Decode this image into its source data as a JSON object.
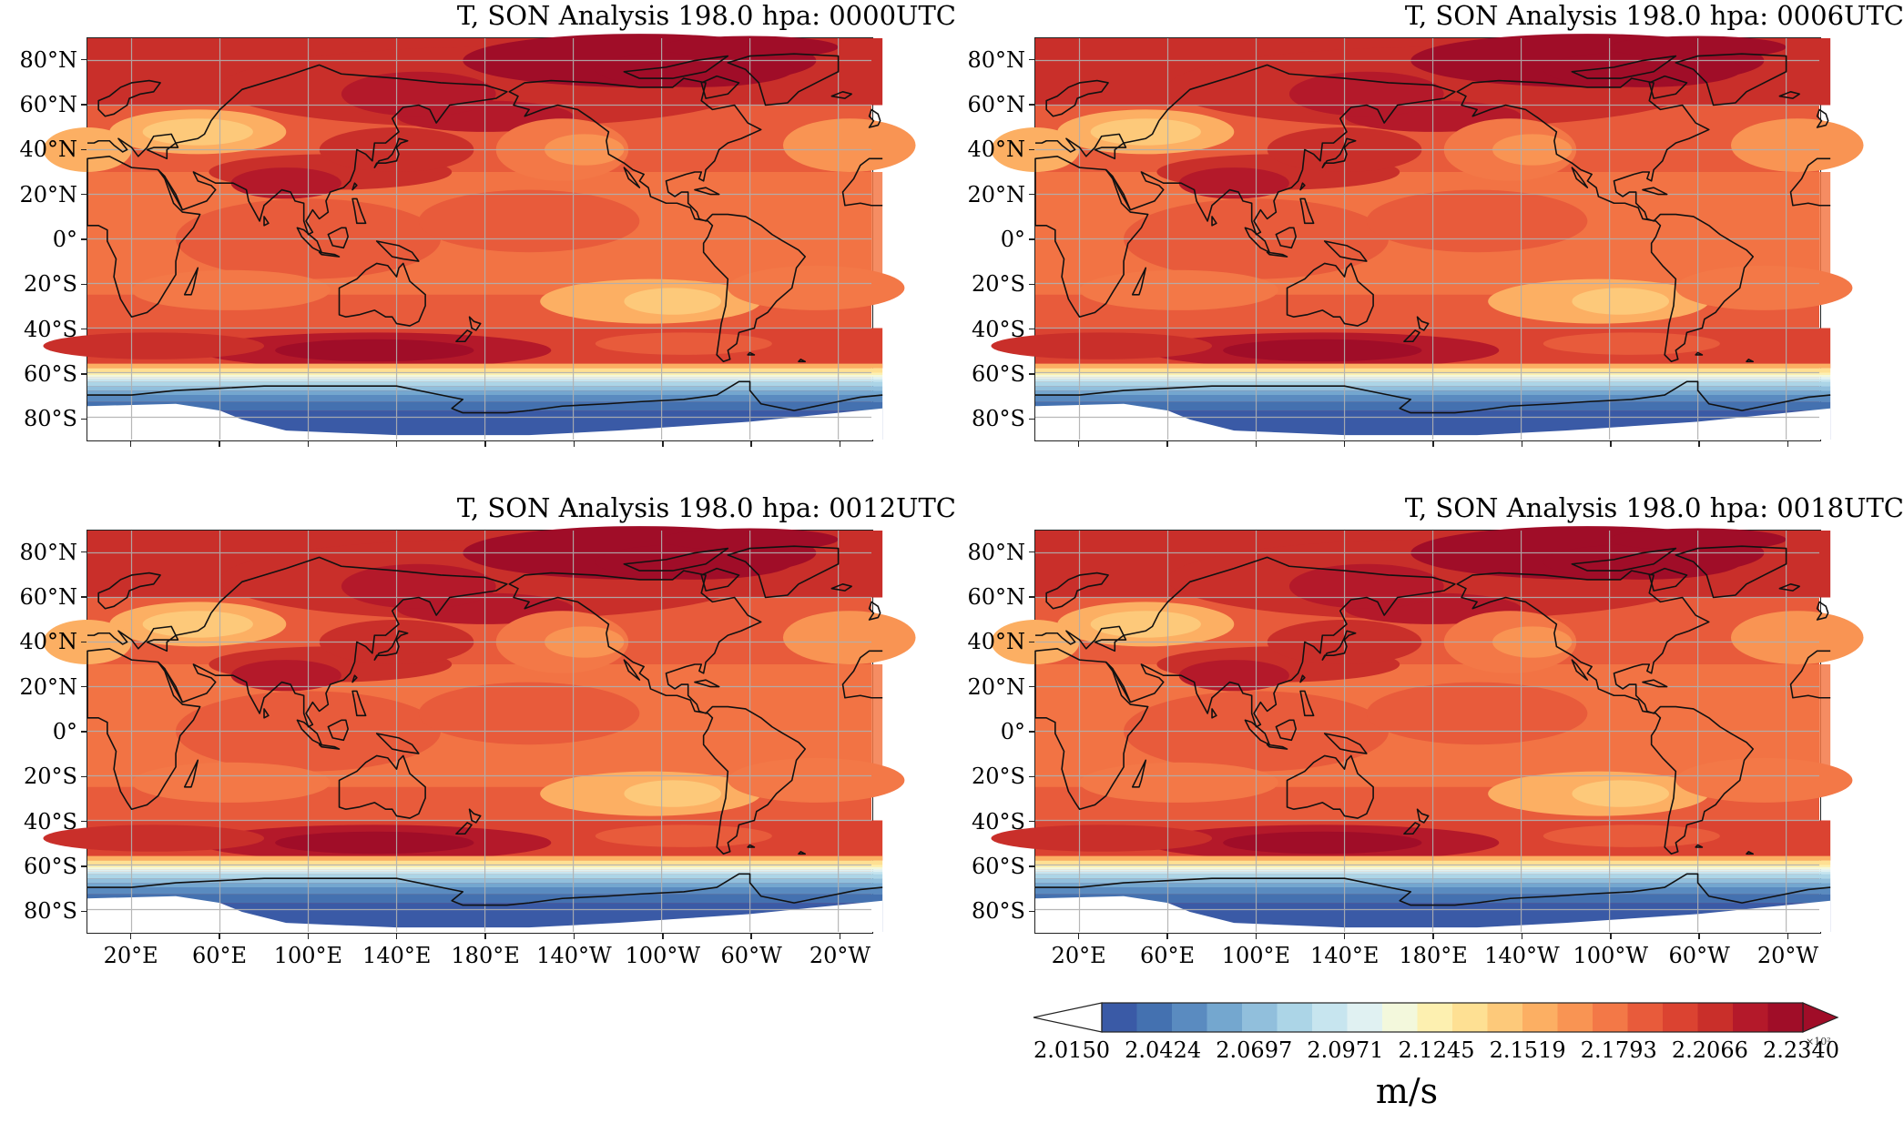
{
  "panels": [
    {
      "title": "T, SON Analysis 198.0 hpa: 0000UTC",
      "show_lon_labels": false
    },
    {
      "title": "T, SON Analysis 198.0 hpa: 0006UTC",
      "show_lon_labels": false
    },
    {
      "title": "T, SON Analysis 198.0 hpa: 0012UTC",
      "show_lon_labels": true
    },
    {
      "title": "T, SON Analysis 198.0 hpa: 0018UTC",
      "show_lon_labels": true
    }
  ],
  "lat_labels": [
    "80°N",
    "60°N",
    "40°N",
    "20°N",
    "0°",
    "20°S",
    "40°S",
    "60°S",
    "80°S"
  ],
  "lat_values": [
    80,
    60,
    40,
    20,
    0,
    -20,
    -40,
    -60,
    -80
  ],
  "lon_labels": [
    "20°E",
    "60°E",
    "100°E",
    "140°E",
    "180°E",
    "140°W",
    "100°W",
    "60°W",
    "20°W"
  ],
  "lon_values": [
    20,
    60,
    100,
    140,
    180,
    220,
    260,
    300,
    340
  ],
  "map_extent": {
    "lon_min": 0,
    "lon_max": 355,
    "lat_min": -90,
    "lat_max": 90
  },
  "colorbar": {
    "tick_labels": [
      "2.0150",
      "2.0424",
      "2.0697",
      "2.0971",
      "2.1245",
      "2.1519",
      "2.1793",
      "2.2066",
      "2.2340"
    ],
    "unit_label": "m/s",
    "scale_label": "×10²",
    "extend": "both",
    "colors": [
      "#3a5aa6",
      "#4471b0",
      "#5a8bc0",
      "#74a7cf",
      "#91bfdc",
      "#acd5e7",
      "#c7e5ef",
      "#e0f1f2",
      "#f3f8dc",
      "#fdf0b0",
      "#fee093",
      "#fdc97a",
      "#fcaf63",
      "#f99453",
      "#f37847",
      "#e85b3b",
      "#db4331",
      "#c92f2a",
      "#b4192a",
      "#a00d28"
    ],
    "under_color": "#ffffff",
    "over_color": "#a00d28"
  }
}
